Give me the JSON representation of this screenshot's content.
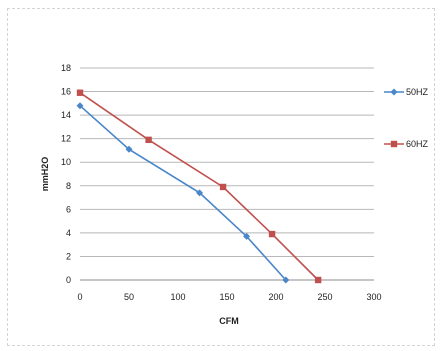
{
  "chart_data": {
    "type": "line",
    "title": "",
    "xlabel": "CFM",
    "ylabel": "mmH2O",
    "xlim": [
      0,
      300
    ],
    "ylim": [
      0,
      18
    ],
    "xticks": [
      0,
      50,
      100,
      150,
      200,
      250,
      300
    ],
    "yticks": [
      0,
      2,
      4,
      6,
      8,
      10,
      12,
      14,
      16,
      18
    ],
    "grid": "horizontal",
    "legend_position": "right",
    "series": [
      {
        "name": "50HZ",
        "color": "#4a86c8",
        "marker": "diamond",
        "points": [
          [
            0,
            14.8
          ],
          [
            50,
            11.1
          ],
          [
            122,
            7.4
          ],
          [
            170,
            3.7
          ],
          [
            210,
            0
          ]
        ]
      },
      {
        "name": "60HZ",
        "color": "#c0504d",
        "marker": "square",
        "points": [
          [
            0,
            15.9
          ],
          [
            70,
            11.9
          ],
          [
            146,
            7.9
          ],
          [
            196,
            3.9
          ],
          [
            243,
            0
          ]
        ]
      }
    ]
  }
}
